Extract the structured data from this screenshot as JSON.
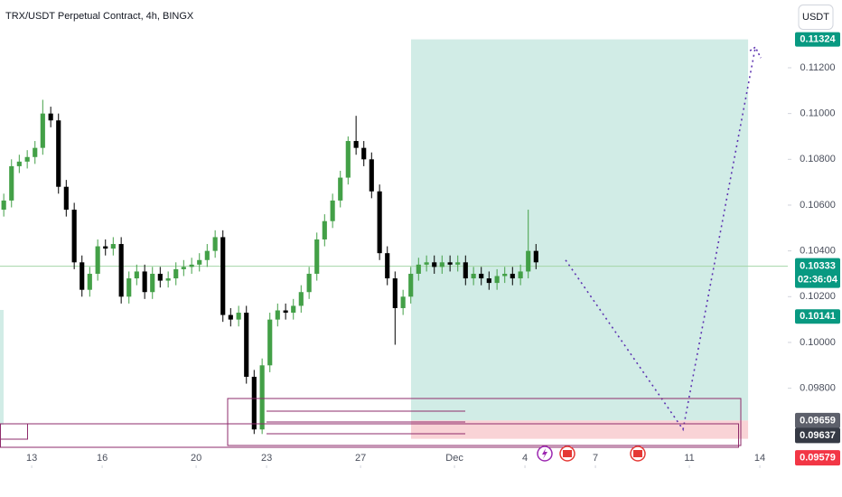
{
  "chart_data": {
    "type": "candlestick",
    "title": "TRX/USDT Perpetual Contract, 4h, BINGX",
    "currency": "USDT",
    "up_color": "#43a047",
    "down_color": "#000000",
    "x": [
      11.81,
      12.14,
      12.47,
      12.81,
      13.14,
      13.47,
      13.81,
      14.14,
      14.47,
      14.81,
      15.14,
      15.47,
      15.81,
      16.14,
      16.47,
      16.81,
      17.14,
      17.47,
      17.81,
      18.14,
      18.47,
      18.81,
      19.14,
      19.47,
      19.81,
      20.14,
      20.47,
      20.81,
      21.14,
      21.47,
      21.81,
      22.14,
      22.47,
      22.81,
      23.14,
      23.47,
      23.81,
      24.14,
      24.47,
      24.81,
      25.14,
      25.47,
      25.81,
      26.14,
      26.47,
      26.81,
      27.14,
      27.47,
      27.81,
      28.14,
      28.47,
      28.81,
      29.14,
      29.47,
      29.81,
      30.14,
      30.47,
      30.81,
      31.14,
      31.47,
      31.81,
      32.14,
      32.47,
      32.81,
      33.14,
      33.47,
      33.81,
      34.14,
      34.47
    ],
    "open": [
      0.1058,
      0.1062,
      0.1077,
      0.1079,
      0.1081,
      0.1085,
      0.11,
      0.1097,
      0.1068,
      0.1058,
      0.1035,
      0.1023,
      0.103,
      0.1042,
      0.1041,
      0.1043,
      0.102,
      0.1028,
      0.1031,
      0.1022,
      0.103,
      0.1027,
      0.1028,
      0.1032,
      0.1033,
      0.1034,
      0.1036,
      0.104,
      0.1046,
      0.1012,
      0.101,
      0.1013,
      0.0985,
      0.0962,
      0.099,
      0.101,
      0.1014,
      0.1013,
      0.1016,
      0.1022,
      0.103,
      0.1045,
      0.1053,
      0.1062,
      0.1072,
      0.1088,
      0.1085,
      0.108,
      0.1066,
      0.1039,
      0.1028,
      0.1015,
      0.102,
      0.103,
      0.1034,
      0.1035,
      0.1033,
      0.1035,
      0.1034,
      0.1035,
      0.1028,
      0.103,
      0.1028,
      0.1026,
      0.1029,
      0.103,
      0.1028,
      0.1031,
      0.104
    ],
    "high": [
      0.1065,
      0.108,
      0.1082,
      0.1084,
      0.1088,
      0.1106,
      0.1103,
      0.11,
      0.1071,
      0.1061,
      0.1038,
      0.1033,
      0.1045,
      0.1045,
      0.1046,
      0.1046,
      0.1031,
      0.1034,
      0.1034,
      0.1033,
      0.1033,
      0.1031,
      0.1035,
      0.1036,
      0.1037,
      0.1039,
      0.1043,
      0.1049,
      0.1049,
      0.1015,
      0.1016,
      0.1016,
      0.0988,
      0.0993,
      0.1013,
      0.1017,
      0.1017,
      0.1019,
      0.1025,
      0.1033,
      0.1048,
      0.1056,
      0.1065,
      0.1075,
      0.109,
      0.1099,
      0.1088,
      0.1083,
      0.1069,
      0.1042,
      0.1031,
      0.1023,
      0.1033,
      0.1037,
      0.1038,
      0.1038,
      0.1038,
      0.1038,
      0.1038,
      0.1038,
      0.1033,
      0.1033,
      0.1031,
      0.1032,
      0.1033,
      0.1033,
      0.1034,
      0.1058,
      0.1043
    ],
    "low": [
      0.1055,
      0.1059,
      0.1074,
      0.1076,
      0.1078,
      0.1082,
      0.1094,
      0.1065,
      0.1055,
      0.1032,
      0.102,
      0.102,
      0.1027,
      0.1038,
      0.1038,
      0.1017,
      0.1017,
      0.1025,
      0.1019,
      0.1019,
      0.1024,
      0.1024,
      0.1025,
      0.1029,
      0.103,
      0.1031,
      0.1033,
      0.1037,
      0.1009,
      0.1007,
      0.1007,
      0.0982,
      0.096,
      0.096,
      0.0987,
      0.1007,
      0.101,
      0.101,
      0.1013,
      0.1019,
      0.1027,
      0.1042,
      0.105,
      0.1059,
      0.1069,
      0.1082,
      0.1077,
      0.1063,
      0.1036,
      0.1025,
      0.0999,
      0.1012,
      0.1017,
      0.1027,
      0.1031,
      0.103,
      0.103,
      0.1031,
      0.1031,
      0.1025,
      0.1025,
      0.1025,
      0.1023,
      0.1023,
      0.1026,
      0.1025,
      0.1025,
      0.1028,
      0.1032
    ],
    "close": [
      0.1062,
      0.1077,
      0.1079,
      0.1081,
      0.1085,
      0.11,
      0.1097,
      0.1068,
      0.1058,
      0.1035,
      0.1023,
      0.103,
      0.1042,
      0.1041,
      0.1043,
      0.102,
      0.1028,
      0.1031,
      0.1022,
      0.103,
      0.1027,
      0.1028,
      0.1032,
      0.1033,
      0.1034,
      0.1036,
      0.104,
      0.1046,
      0.1012,
      0.101,
      0.1013,
      0.0985,
      0.0962,
      0.099,
      0.101,
      0.1014,
      0.1013,
      0.1016,
      0.1022,
      0.103,
      0.1045,
      0.1053,
      0.1062,
      0.1072,
      0.1088,
      0.1085,
      0.108,
      0.1066,
      0.1039,
      0.1028,
      0.1015,
      0.102,
      0.103,
      0.1034,
      0.1035,
      0.1033,
      0.1035,
      0.1034,
      0.1035,
      0.1028,
      0.103,
      0.1028,
      0.1026,
      0.1029,
      0.103,
      0.1028,
      0.1031,
      0.104,
      0.1035
    ],
    "xlim": [
      11.65,
      45.19
    ],
    "ylim": [
      0.09463,
      0.11496
    ],
    "xticks": [
      13,
      16,
      20,
      23,
      27,
      {
        "value": 31,
        "label": "Dec"
      },
      {
        "value": 34,
        "label": "4"
      },
      {
        "value": 37,
        "label": "7"
      },
      {
        "value": 41,
        "label": "11"
      },
      {
        "value": 44,
        "label": "14"
      }
    ],
    "yticks": [
      {
        "value": 0.112,
        "label": "0.11200"
      },
      {
        "value": 0.11,
        "label": "0.11000"
      },
      {
        "value": 0.108,
        "label": "0.10800"
      },
      {
        "value": 0.106,
        "label": "0.10600"
      },
      {
        "value": 0.104,
        "label": "0.10400"
      },
      {
        "value": 0.102,
        "label": "0.10200"
      },
      {
        "value": 0.1,
        "label": "0.10000"
      },
      {
        "value": 0.098,
        "label": "0.09800"
      }
    ],
    "position": {
      "start": 29.15,
      "end": 43.5,
      "target": 0.11324,
      "entry": 0.09659,
      "stop": 0.09579
    },
    "last_price": 0.10333,
    "countdown": "02:36:04",
    "price_marks": [
      0.10141,
      0.09637
    ],
    "projection": {
      "x": [
        35.73,
        40.73,
        43.81
      ],
      "y": [
        0.1036,
        0.0962,
        0.1129
      ]
    }
  }
}
